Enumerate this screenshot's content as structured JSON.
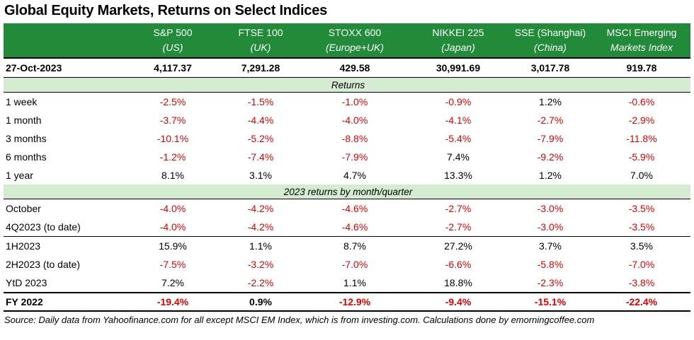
{
  "title": "Global Equity Markets, Returns on Select Indices",
  "columns": [
    {
      "name": "S&P 500",
      "region": "(US)"
    },
    {
      "name": "FTSE 100",
      "region": "(UK)"
    },
    {
      "name": "STOXX 600",
      "region": "(Europe+UK)"
    },
    {
      "name": "NIKKEI 225",
      "region": "(Japan)"
    },
    {
      "name": "SSE (Shanghai)",
      "region": "(China)"
    },
    {
      "name": "MSCI Emerging",
      "region": "Markets Index"
    }
  ],
  "date_row": {
    "label": "27-Oct-2023",
    "values": [
      "4,117.37",
      "7,291.28",
      "429.58",
      "30,991.69",
      "3,017.78",
      "919.78"
    ]
  },
  "section_returns": "Returns",
  "returns": [
    {
      "label": "1 week",
      "values": [
        "-2.5%",
        "-1.5%",
        "-1.0%",
        "-0.9%",
        "1.2%",
        "-0.6%"
      ]
    },
    {
      "label": "1 month",
      "values": [
        "-3.7%",
        "-4.4%",
        "-4.0%",
        "-4.1%",
        "-2.7%",
        "-2.9%"
      ]
    },
    {
      "label": "3 months",
      "values": [
        "-10.1%",
        "-5.2%",
        "-8.8%",
        "-5.4%",
        "-7.9%",
        "-11.8%"
      ]
    },
    {
      "label": "6 months",
      "values": [
        "-1.2%",
        "-7.4%",
        "-7.9%",
        "7.4%",
        "-9.2%",
        "-5.9%"
      ]
    },
    {
      "label": "1 year",
      "values": [
        "8.1%",
        "3.1%",
        "4.7%",
        "13.3%",
        "1.2%",
        "7.0%"
      ]
    }
  ],
  "section_monthly": "2023 returns by month/quarter",
  "monthly_a": [
    {
      "label": "October",
      "values": [
        "-4.0%",
        "-4.2%",
        "-4.6%",
        "-2.7%",
        "-3.0%",
        "-3.5%"
      ]
    },
    {
      "label": "4Q2023 (to date)",
      "values": [
        "-4.0%",
        "-4.2%",
        "-4.6%",
        "-2.7%",
        "-3.0%",
        "-3.5%"
      ]
    }
  ],
  "monthly_b": [
    {
      "label": "1H2023",
      "values": [
        "15.9%",
        "1.1%",
        "8.7%",
        "27.2%",
        "3.7%",
        "3.5%"
      ]
    },
    {
      "label": "2H2023 (to date)",
      "values": [
        "-7.5%",
        "-3.2%",
        "-7.0%",
        "-6.6%",
        "-5.8%",
        "-7.0%"
      ]
    },
    {
      "label": "YtD 2023",
      "values": [
        "7.2%",
        "-2.2%",
        "1.1%",
        "18.8%",
        "-2.3%",
        "-3.8%"
      ]
    }
  ],
  "fy_row": {
    "label": "FY 2022",
    "values": [
      "-19.4%",
      "0.9%",
      "-12.9%",
      "-9.4%",
      "-15.1%",
      "-22.4%"
    ]
  },
  "source": "Source: Daily data from Yahoofinance.com for all except MSCI EM Index, which is from investing.com.  Calculations done by emorningcoffee.com",
  "colors": {
    "header_bg": "#218b3a",
    "section_bg": "#d6ecd2",
    "negative": "#e00000"
  }
}
